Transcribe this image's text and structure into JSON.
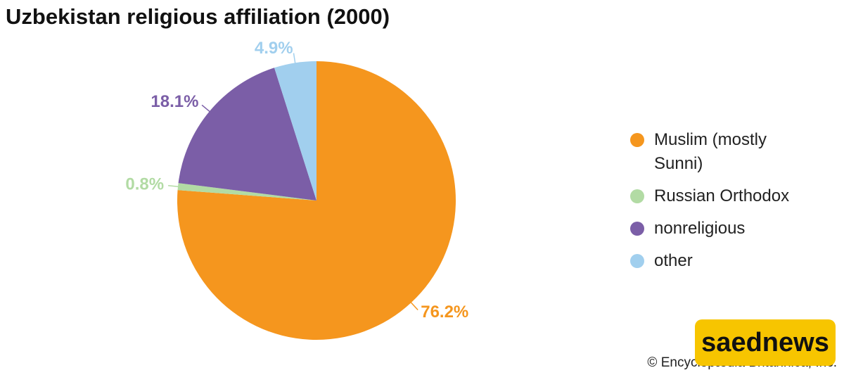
{
  "chart_data": {
    "type": "pie",
    "title": "Uzbekistan religious affiliation (2000)",
    "categories": [
      "Muslim (mostly Sunni)",
      "Russian Orthodox",
      "nonreligious",
      "other"
    ],
    "values": [
      76.2,
      0.8,
      18.1,
      4.9
    ],
    "value_labels": [
      "76.2%",
      "0.8%",
      "18.1%",
      "4.9%"
    ],
    "colors": [
      "#f5961e",
      "#b2dba4",
      "#7b5ea7",
      "#a1cfee"
    ],
    "legend": "right",
    "credit": "© Encyclopædia Britannica, Inc.",
    "watermark": "saednews"
  }
}
